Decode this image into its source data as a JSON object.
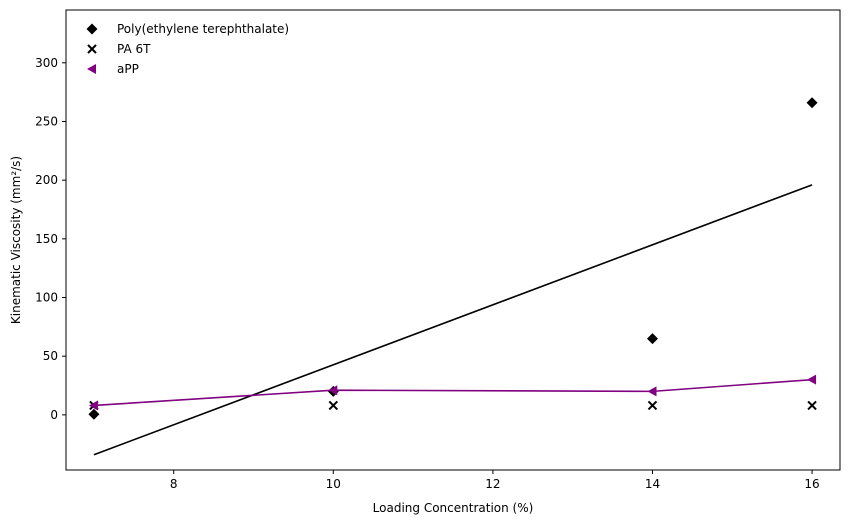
{
  "chart_data": {
    "type": "scatter",
    "xlabel": "Loading Concentration (%)",
    "ylabel": "Kinematic Viscosity (mm²/s)",
    "xlim": [
      6.65,
      16.35
    ],
    "ylim": [
      -47,
      345
    ],
    "x_ticks": [
      8,
      10,
      12,
      14,
      16
    ],
    "y_ticks": [
      0,
      50,
      100,
      150,
      200,
      250,
      300
    ],
    "grid": false,
    "legend_position": "top-left",
    "x": [
      7,
      10,
      14,
      16
    ],
    "series": [
      {
        "name": "Poly(ethylene terephthalate)",
        "marker": "diamond",
        "color": "#000000",
        "values": [
          0.5,
          20,
          65,
          266
        ]
      },
      {
        "name": "PA 6T",
        "marker": "x",
        "color": "#000000",
        "values": [
          8,
          8,
          8,
          8
        ]
      },
      {
        "name": "aPP",
        "marker": "triangle-left",
        "color": "#800080",
        "connected": true,
        "values": [
          8,
          21,
          20,
          30
        ]
      }
    ],
    "fit_lines": [
      {
        "color": "#000000",
        "x": [
          7,
          16
        ],
        "y": [
          -34,
          196
        ]
      }
    ]
  }
}
